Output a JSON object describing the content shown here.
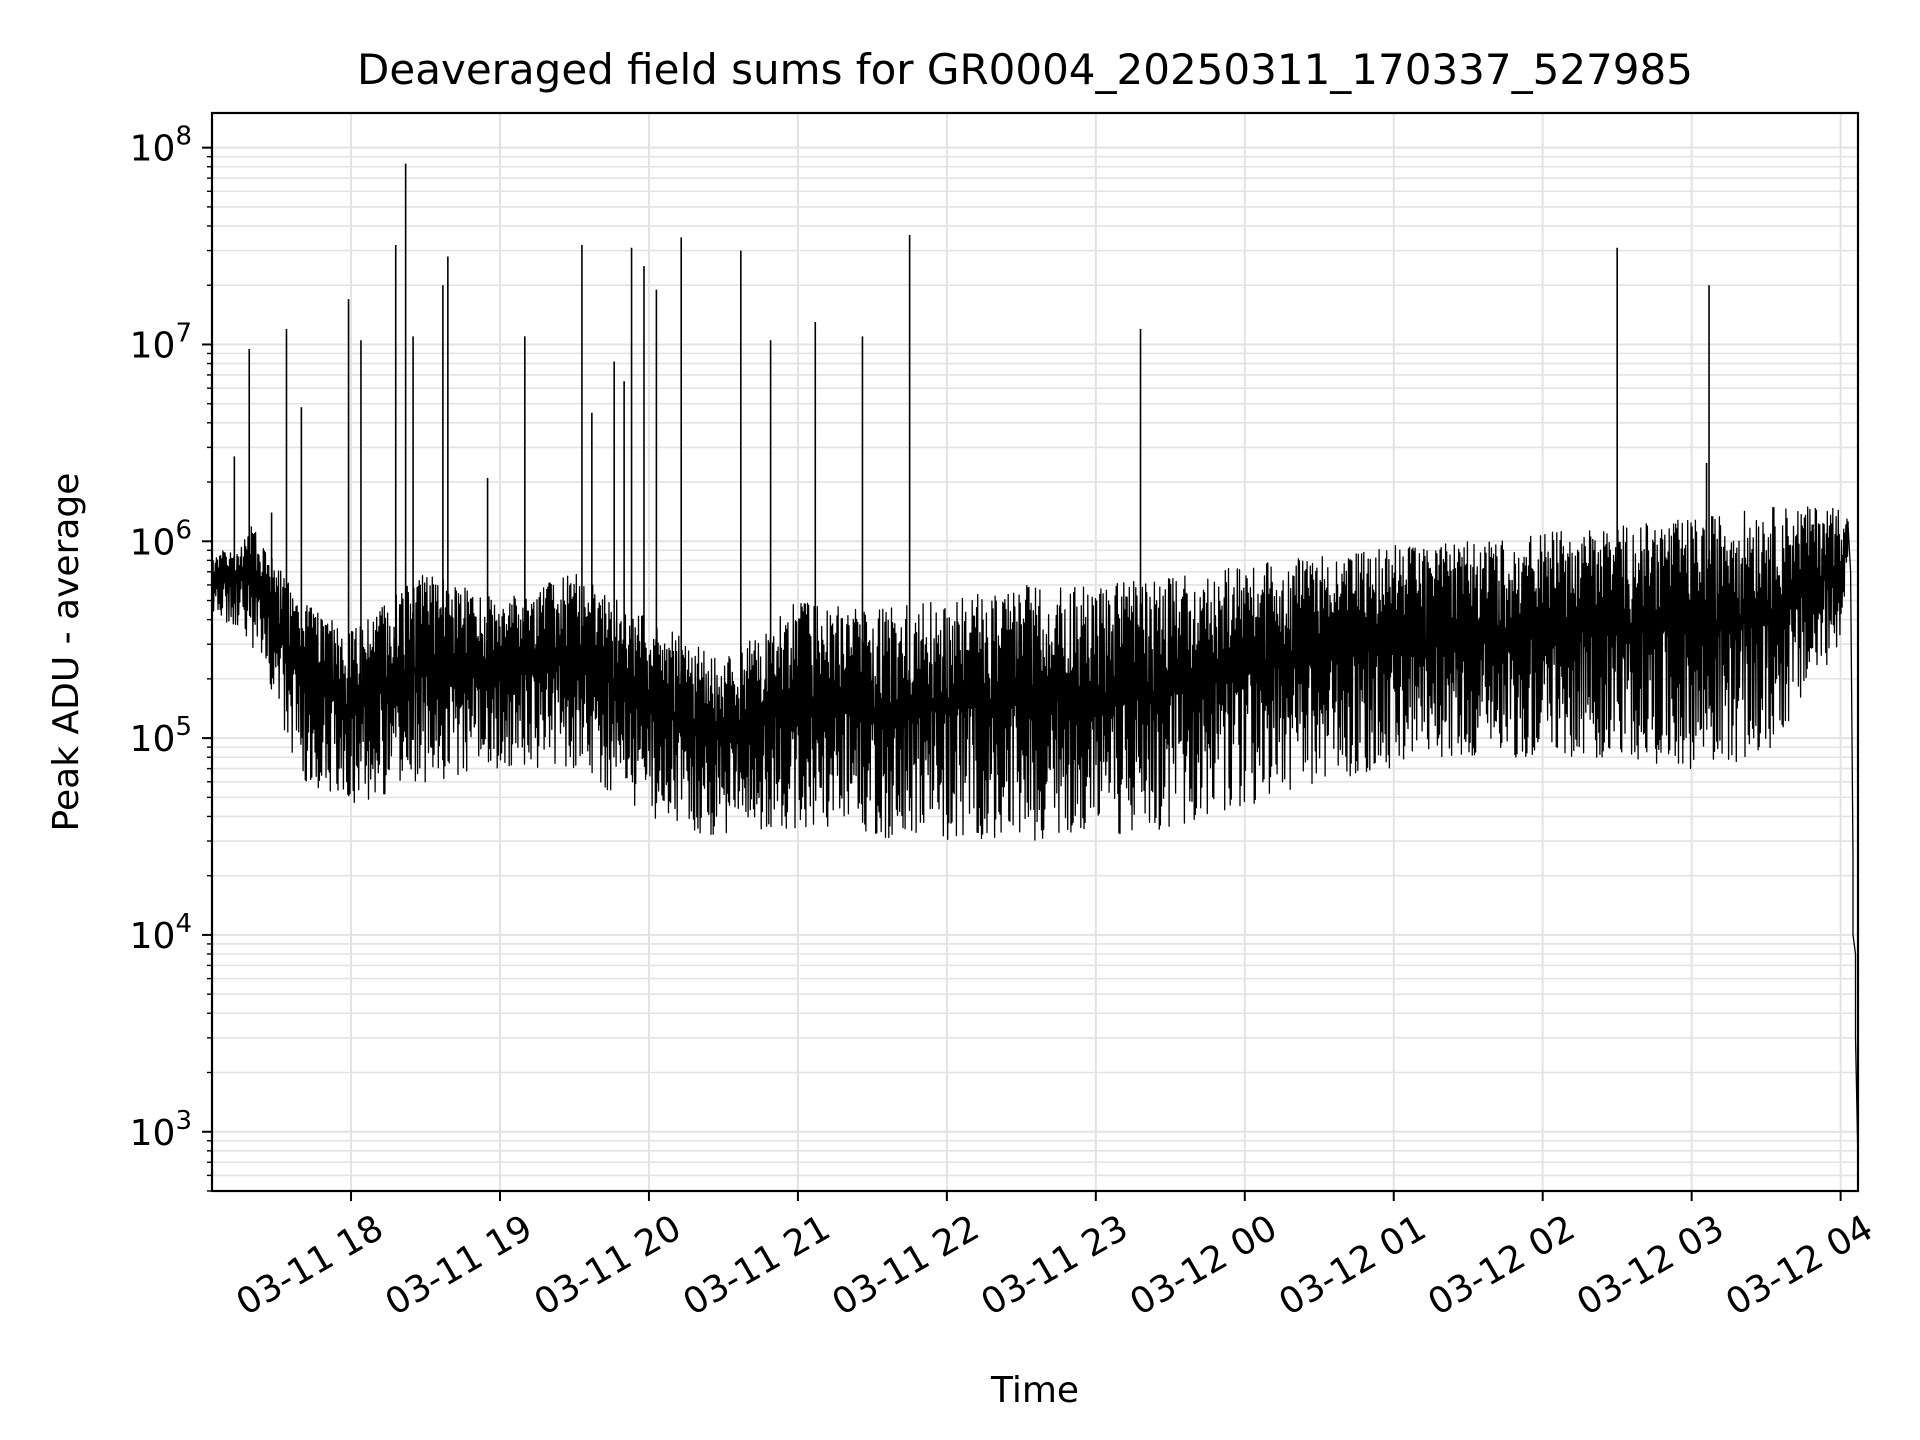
{
  "chart_data": {
    "type": "line",
    "title": "Deaveraged field sums for GR0004_20250311_170337_527985",
    "xlabel": "Time",
    "ylabel": "Peak ADU - average",
    "y_scale": "log",
    "ylim": [
      500,
      150000000
    ],
    "xlim": [
      "2025-03-11 17:04",
      "2025-03-12 04:07"
    ],
    "grid": "major and minor, light gray",
    "line_color": "#000000",
    "x_ticks": [
      "2025-03-11 18:00",
      "2025-03-11 19:00",
      "2025-03-11 20:00",
      "2025-03-11 21:00",
      "2025-03-11 22:00",
      "2025-03-11 23:00",
      "2025-03-12 00:00",
      "2025-03-12 01:00",
      "2025-03-12 02:00",
      "2025-03-12 03:00",
      "2025-03-12 04:00"
    ],
    "x_tick_labels": [
      "03-11 18",
      "03-11 19",
      "03-11 20",
      "03-11 21",
      "03-11 22",
      "03-11 23",
      "03-12 00",
      "03-12 01",
      "03-12 02",
      "03-12 03",
      "03-12 04"
    ],
    "y_ticks": [
      1000,
      10000,
      100000,
      1000000,
      10000000,
      100000000
    ],
    "y_tick_labels": [
      {
        "base": "10",
        "exp": "3"
      },
      {
        "base": "10",
        "exp": "4"
      },
      {
        "base": "10",
        "exp": "5"
      },
      {
        "base": "10",
        "exp": "6"
      },
      {
        "base": "10",
        "exp": "7"
      },
      {
        "base": "10",
        "exp": "8"
      }
    ],
    "envelope": [
      {
        "t": "2025-03-11 17:04",
        "upper": 800000,
        "lower": 450000
      },
      {
        "t": "2025-03-11 17:20",
        "upper": 1200000,
        "lower": 300000
      },
      {
        "t": "2025-03-11 17:40",
        "upper": 500000,
        "lower": 60000
      },
      {
        "t": "2025-03-11 18:00",
        "upper": 350000,
        "lower": 45000
      },
      {
        "t": "2025-03-11 18:30",
        "upper": 700000,
        "lower": 60000
      },
      {
        "t": "2025-03-11 19:00",
        "upper": 500000,
        "lower": 70000
      },
      {
        "t": "2025-03-11 19:30",
        "upper": 700000,
        "lower": 70000
      },
      {
        "t": "2025-03-11 20:00",
        "upper": 400000,
        "lower": 40000
      },
      {
        "t": "2025-03-11 20:30",
        "upper": 250000,
        "lower": 30000
      },
      {
        "t": "2025-03-11 21:00",
        "upper": 500000,
        "lower": 35000
      },
      {
        "t": "2025-03-11 21:30",
        "upper": 450000,
        "lower": 30000
      },
      {
        "t": "2025-03-11 22:00",
        "upper": 500000,
        "lower": 30000
      },
      {
        "t": "2025-03-11 22:30",
        "upper": 600000,
        "lower": 30000
      },
      {
        "t": "2025-03-11 23:00",
        "upper": 600000,
        "lower": 30000
      },
      {
        "t": "2025-03-11 23:30",
        "upper": 650000,
        "lower": 35000
      },
      {
        "t": "2025-03-12 00:00",
        "upper": 750000,
        "lower": 45000
      },
      {
        "t": "2025-03-12 00:30",
        "upper": 850000,
        "lower": 60000
      },
      {
        "t": "2025-03-12 01:00",
        "upper": 950000,
        "lower": 70000
      },
      {
        "t": "2025-03-12 01:30",
        "upper": 1000000,
        "lower": 80000
      },
      {
        "t": "2025-03-12 02:00",
        "upper": 1100000,
        "lower": 80000
      },
      {
        "t": "2025-03-12 02:30",
        "upper": 1200000,
        "lower": 80000
      },
      {
        "t": "2025-03-12 03:00",
        "upper": 1300000,
        "lower": 70000
      },
      {
        "t": "2025-03-12 03:30",
        "upper": 1500000,
        "lower": 80000
      },
      {
        "t": "2025-03-12 04:00",
        "upper": 1500000,
        "lower": 300000
      },
      {
        "t": "2025-03-12 04:03",
        "upper": 1300000,
        "lower": 900000
      }
    ],
    "tail": [
      {
        "t": "2025-03-12 04:03",
        "y": 1200000
      },
      {
        "t": "2025-03-12 04:04",
        "y": 700000
      },
      {
        "t": "2025-03-12 04:05",
        "y": 25000
      },
      {
        "t": "2025-03-12 04:05",
        "y": 10000
      },
      {
        "t": "2025-03-12 04:06",
        "y": 8000
      },
      {
        "t": "2025-03-12 04:06",
        "y": 3000
      },
      {
        "t": "2025-03-12 04:07",
        "y": 700
      }
    ],
    "spikes": [
      {
        "t": "2025-03-11 17:13",
        "y": 2700000
      },
      {
        "t": "2025-03-11 17:19",
        "y": 9500000
      },
      {
        "t": "2025-03-11 17:28",
        "y": 1400000
      },
      {
        "t": "2025-03-11 17:34",
        "y": 12000000
      },
      {
        "t": "2025-03-11 17:40",
        "y": 4800000
      },
      {
        "t": "2025-03-11 17:59",
        "y": 17000000
      },
      {
        "t": "2025-03-11 18:04",
        "y": 10500000
      },
      {
        "t": "2025-03-11 18:18",
        "y": 32000000
      },
      {
        "t": "2025-03-11 18:22",
        "y": 83000000
      },
      {
        "t": "2025-03-11 18:25",
        "y": 11000000
      },
      {
        "t": "2025-03-11 18:37",
        "y": 20000000
      },
      {
        "t": "2025-03-11 18:39",
        "y": 28000000
      },
      {
        "t": "2025-03-11 18:55",
        "y": 2100000
      },
      {
        "t": "2025-03-11 19:10",
        "y": 11000000
      },
      {
        "t": "2025-03-11 19:33",
        "y": 32000000
      },
      {
        "t": "2025-03-11 19:37",
        "y": 4500000
      },
      {
        "t": "2025-03-11 19:46",
        "y": 8200000
      },
      {
        "t": "2025-03-11 19:50",
        "y": 6500000
      },
      {
        "t": "2025-03-11 19:53",
        "y": 31000000
      },
      {
        "t": "2025-03-11 19:58",
        "y": 25000000
      },
      {
        "t": "2025-03-11 20:03",
        "y": 19000000
      },
      {
        "t": "2025-03-11 20:13",
        "y": 35000000
      },
      {
        "t": "2025-03-11 20:37",
        "y": 30000000
      },
      {
        "t": "2025-03-11 20:49",
        "y": 10500000
      },
      {
        "t": "2025-03-11 21:07",
        "y": 13000000
      },
      {
        "t": "2025-03-11 21:26",
        "y": 11000000
      },
      {
        "t": "2025-03-11 21:45",
        "y": 36000000
      },
      {
        "t": "2025-03-11 23:18",
        "y": 12000000
      },
      {
        "t": "2025-03-12 02:30",
        "y": 31000000
      },
      {
        "t": "2025-03-12 03:07",
        "y": 20000000
      },
      {
        "t": "2025-03-12 03:06",
        "y": 2500000
      }
    ]
  }
}
